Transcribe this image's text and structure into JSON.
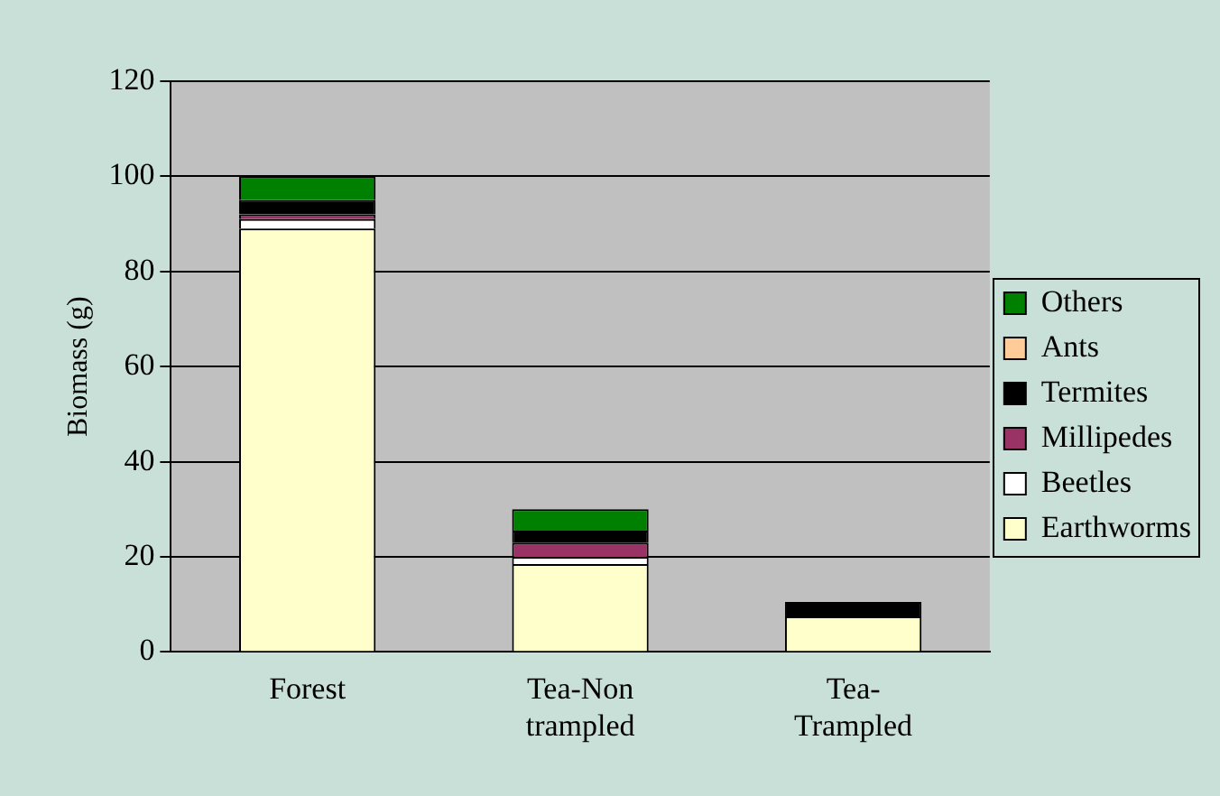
{
  "chart_data": {
    "type": "bar",
    "stacked": true,
    "ylabel": "Biomass (g)",
    "categories": [
      "Forest",
      "Tea-Non trampled",
      "Tea-Trampled"
    ],
    "series": [
      {
        "name": "Earthworms",
        "color": "#ffffcc",
        "values": [
          89,
          18.5,
          7.5
        ]
      },
      {
        "name": "Beetles",
        "color": "#ffffff",
        "values": [
          2,
          1.5,
          0
        ]
      },
      {
        "name": "Millipedes",
        "color": "#993366",
        "values": [
          1,
          3,
          0
        ]
      },
      {
        "name": "Termites",
        "color": "#000000",
        "values": [
          3,
          2.5,
          3
        ]
      },
      {
        "name": "Ants",
        "color": "#ffcc99",
        "values": [
          0,
          0,
          0
        ]
      },
      {
        "name": "Others",
        "color": "#008000",
        "values": [
          5,
          4.5,
          0
        ]
      }
    ],
    "ylim": [
      0,
      120
    ],
    "yticks": [
      0,
      20,
      40,
      60,
      80,
      100,
      120
    ],
    "grid": "y",
    "legend": "right"
  }
}
